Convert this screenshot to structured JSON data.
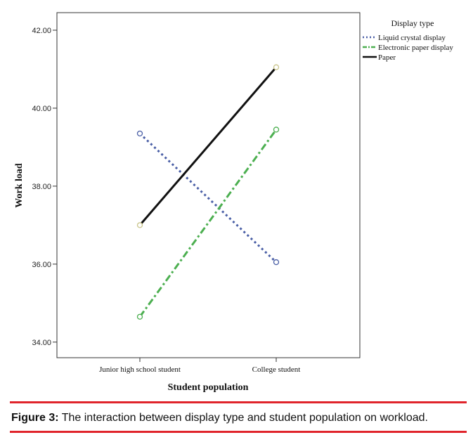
{
  "chart_data": {
    "type": "line",
    "xlabel": "Student population",
    "ylabel": "Work load",
    "categories": [
      "Junior high school student",
      "College student"
    ],
    "ylim": [
      33.6,
      42.45
    ],
    "yticks": [
      "34.00",
      "36.00",
      "38.00",
      "40.00",
      "42.00"
    ],
    "ytick_values": [
      34,
      36,
      38,
      40,
      42
    ],
    "grid": false,
    "legend_title": "Display type",
    "legend_position": "top-right (outside plot)",
    "series": [
      {
        "name": "Liquid crystal display",
        "values": [
          39.35,
          36.05
        ],
        "color": "#4a5fa6",
        "style": "dotted",
        "marker": "open-circle"
      },
      {
        "name": "Electronic paper display",
        "values": [
          34.65,
          39.45
        ],
        "color": "#4caf50",
        "style": "dash-dot",
        "marker": "open-circle"
      },
      {
        "name": "Paper",
        "values": [
          37.0,
          41.05
        ],
        "color": "#111111",
        "style": "solid",
        "marker": "open-circle"
      }
    ]
  },
  "caption": {
    "label": "Figure 3:",
    "text": " The interaction between display type and student population on workload."
  }
}
